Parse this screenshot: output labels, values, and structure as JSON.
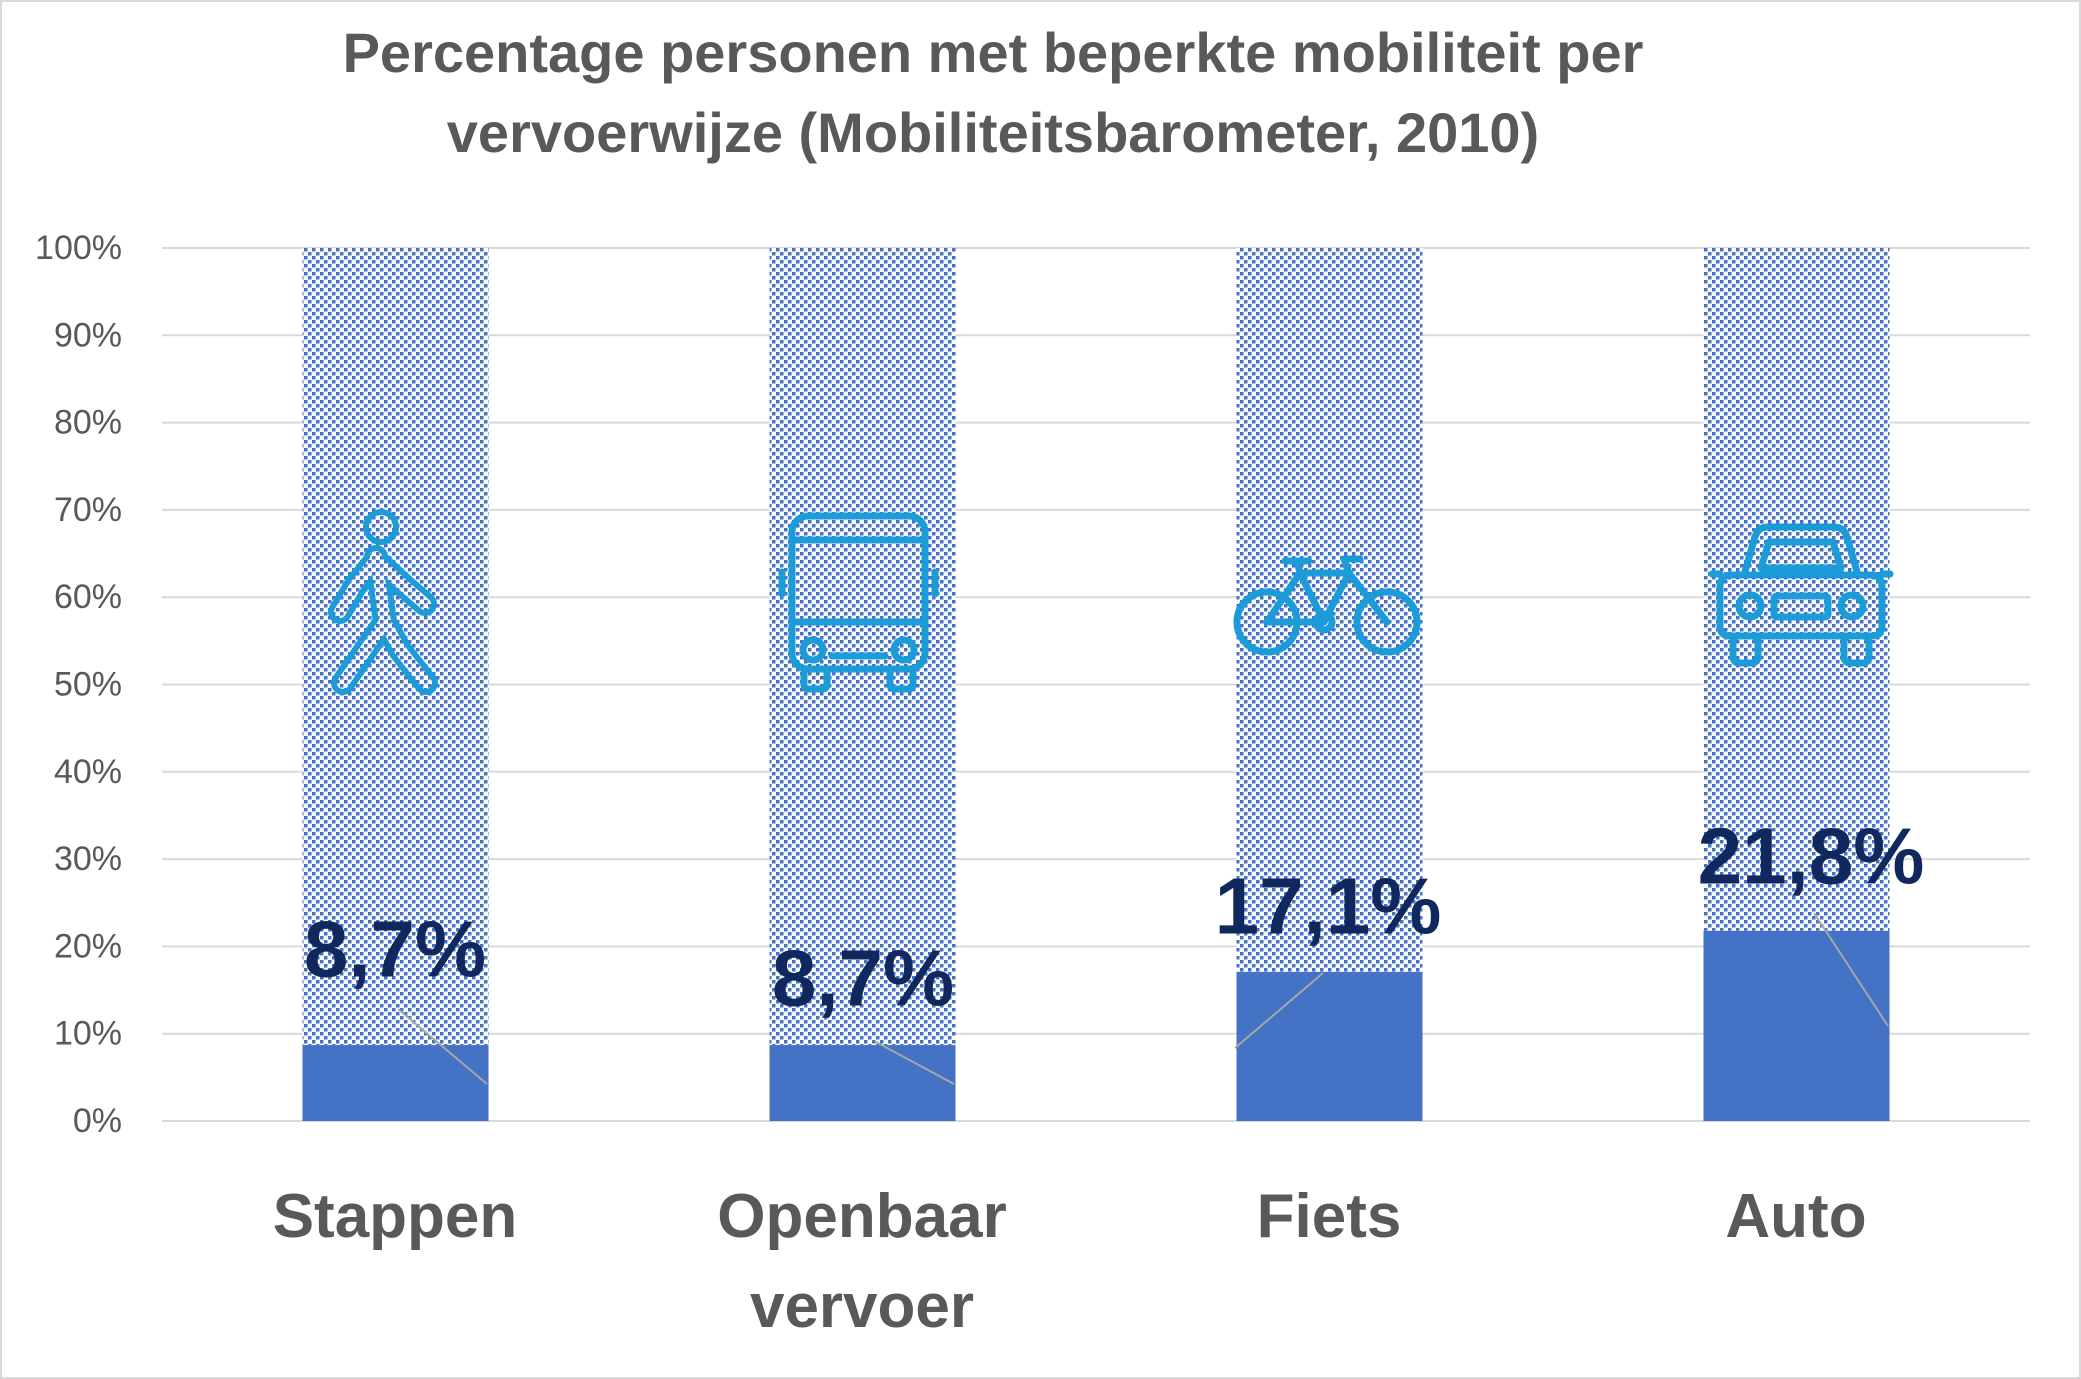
{
  "chart_data": {
    "type": "bar",
    "stacked": true,
    "title_lines": [
      "Percentage personen met beperkte mobiliteit per",
      "vervoerwijze (Mobiliteitsbarometer, 2010)"
    ],
    "categories": [
      "Stappen",
      "Openbaar vervoer",
      "Fiets",
      "Auto"
    ],
    "series": [
      {
        "values": [
          8.7,
          8.7,
          17.1,
          21.8
        ],
        "data_labels": [
          "8,7%",
          "8,7%",
          "17,1%",
          "21,8%"
        ]
      },
      {
        "values": [
          91.3,
          91.3,
          82.9,
          78.2
        ]
      }
    ],
    "ylim": [
      0,
      100
    ],
    "yticks": [
      0,
      10,
      20,
      30,
      40,
      50,
      60,
      70,
      80,
      90,
      100
    ],
    "ytick_labels": [
      "0%",
      "10%",
      "20%",
      "30%",
      "40%",
      "50%",
      "60%",
      "70%",
      "80%",
      "90%",
      "100%"
    ],
    "grid": true,
    "legend": "none"
  },
  "icons": [
    "walking-person-icon",
    "bus-icon",
    "bicycle-icon",
    "car-icon"
  ],
  "colors": {
    "bar": "#4472C4",
    "pattern": "#4472C4",
    "icon": "#1B9BD7",
    "data_label": "#10285E",
    "text": "#595959",
    "grid": "#D9D9D9",
    "leader_line": "#A6A6A6",
    "border": "#D9D9D9"
  }
}
